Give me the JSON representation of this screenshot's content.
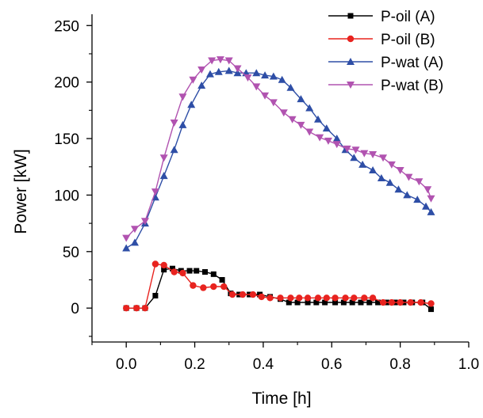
{
  "chart_data": {
    "type": "line",
    "xlabel": "Time [h]",
    "ylabel": "Power [kW]",
    "xlim": [
      -0.1,
      1.0
    ],
    "ylim": [
      -30,
      260
    ],
    "x_ticks": [
      "0.0",
      "0.2",
      "0.4",
      "0.6",
      "0.8",
      "1.0"
    ],
    "y_ticks": [
      "0",
      "50",
      "100",
      "150",
      "200",
      "250"
    ],
    "x_tick_values": [
      0.0,
      0.2,
      0.4,
      0.6,
      0.8,
      1.0
    ],
    "y_tick_values": [
      0,
      50,
      100,
      150,
      200,
      250
    ],
    "grid": false,
    "legend_position": "top-right",
    "series": [
      {
        "name": "P-oil (A)",
        "color": "#000000",
        "marker": "square",
        "x": [
          0.0,
          0.03,
          0.055,
          0.085,
          0.11,
          0.135,
          0.16,
          0.185,
          0.205,
          0.23,
          0.255,
          0.28,
          0.305,
          0.33,
          0.36,
          0.39,
          0.42,
          0.45,
          0.475,
          0.5,
          0.53,
          0.555,
          0.58,
          0.61,
          0.635,
          0.66,
          0.685,
          0.71,
          0.735,
          0.76,
          0.785,
          0.81,
          0.835,
          0.865,
          0.89
        ],
        "values": [
          0,
          0,
          0,
          11,
          34,
          35,
          33,
          33,
          33,
          32,
          30,
          25,
          13,
          12,
          12,
          12,
          10,
          8,
          5,
          5,
          5,
          5,
          5,
          5,
          5,
          5,
          5,
          5,
          5,
          5,
          5,
          5,
          5,
          5,
          -1
        ]
      },
      {
        "name": "P-oil (B)",
        "color": "#e8231f",
        "marker": "circle",
        "x": [
          0.0,
          0.03,
          0.055,
          0.085,
          0.11,
          0.14,
          0.165,
          0.195,
          0.225,
          0.255,
          0.285,
          0.31,
          0.34,
          0.37,
          0.395,
          0.42,
          0.45,
          0.48,
          0.505,
          0.53,
          0.56,
          0.585,
          0.61,
          0.64,
          0.665,
          0.695,
          0.72,
          0.75,
          0.775,
          0.8,
          0.83,
          0.86,
          0.89
        ],
        "values": [
          0,
          0,
          0,
          39,
          38,
          32,
          31,
          20,
          18,
          19,
          19,
          12,
          12,
          12,
          10,
          9,
          9,
          9,
          9,
          9,
          9,
          9,
          9,
          9,
          9,
          9,
          9,
          5,
          5,
          5,
          5,
          5,
          4
        ]
      },
      {
        "name": "P-wat (A)",
        "color": "#2e4ea6",
        "marker": "triangle-up",
        "x": [
          0.0,
          0.025,
          0.055,
          0.085,
          0.11,
          0.14,
          0.165,
          0.19,
          0.22,
          0.245,
          0.27,
          0.3,
          0.325,
          0.35,
          0.38,
          0.405,
          0.43,
          0.455,
          0.48,
          0.51,
          0.535,
          0.56,
          0.585,
          0.615,
          0.64,
          0.665,
          0.69,
          0.72,
          0.745,
          0.77,
          0.795,
          0.82,
          0.85,
          0.875,
          0.89
        ],
        "values": [
          53,
          58,
          75,
          98,
          117,
          140,
          162,
          180,
          197,
          207,
          209,
          210,
          208,
          208,
          208,
          206,
          205,
          202,
          195,
          185,
          177,
          167,
          159,
          150,
          140,
          133,
          127,
          122,
          115,
          111,
          105,
          100,
          96,
          90,
          85
        ]
      },
      {
        "name": "P-wat (B)",
        "color": "#b153b0",
        "marker": "triangle-down",
        "x": [
          0.0,
          0.025,
          0.055,
          0.085,
          0.11,
          0.14,
          0.165,
          0.195,
          0.22,
          0.25,
          0.275,
          0.3,
          0.325,
          0.355,
          0.38,
          0.405,
          0.43,
          0.46,
          0.485,
          0.51,
          0.535,
          0.565,
          0.59,
          0.615,
          0.645,
          0.67,
          0.695,
          0.72,
          0.75,
          0.775,
          0.8,
          0.825,
          0.855,
          0.88,
          0.89
        ],
        "values": [
          62,
          70,
          77,
          103,
          133,
          164,
          187,
          202,
          211,
          219,
          220,
          219,
          212,
          204,
          196,
          188,
          182,
          173,
          167,
          162,
          156,
          151,
          148,
          145,
          141,
          140,
          137,
          136,
          133,
          127,
          122,
          116,
          112,
          105,
          97
        ]
      }
    ]
  }
}
